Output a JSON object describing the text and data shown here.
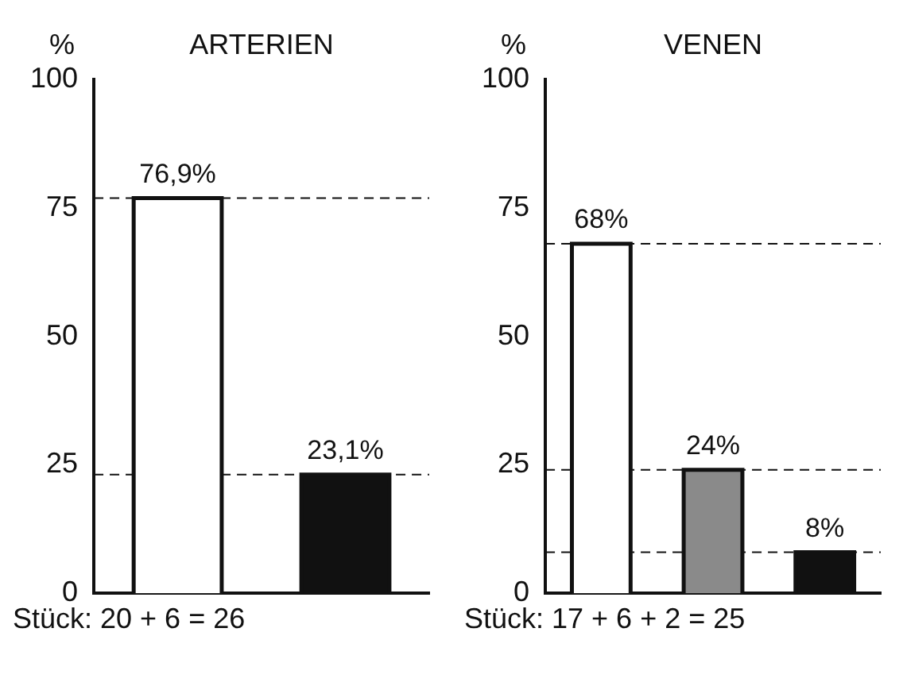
{
  "chart_data": [
    {
      "type": "bar",
      "title": "ARTERIEN",
      "ylabel": "%",
      "xlabel": "Stück: 20 + 6 = 26",
      "categories": [
        null,
        null
      ],
      "values": [
        76.9,
        23.1
      ],
      "colors": [
        "#ffffff",
        "#111111"
      ],
      "value_labels": [
        "76,9%",
        "23,1%"
      ],
      "ylim": [
        0,
        100
      ],
      "yticks": [
        0,
        25,
        50,
        75,
        100
      ],
      "grid": false,
      "legend": false,
      "ref_lines": [
        {
          "axis": "y",
          "value": 76.9,
          "line_style": "dashed"
        },
        {
          "axis": "y",
          "value": 23.1,
          "line_style": "dashed"
        }
      ]
    },
    {
      "type": "bar",
      "title": "VENEN",
      "ylabel": "%",
      "xlabel": "Stück: 17 + 6 + 2 = 25",
      "categories": [
        null,
        null,
        null
      ],
      "values": [
        68,
        24,
        8
      ],
      "colors": [
        "#ffffff",
        "#8a8a8a",
        "#111111"
      ],
      "value_labels": [
        "68%",
        "24%",
        "8%"
      ],
      "ylim": [
        0,
        100
      ],
      "yticks": [
        0,
        25,
        50,
        75,
        100
      ],
      "grid": false,
      "legend": false,
      "ref_lines": [
        {
          "axis": "y",
          "value": 68,
          "line_style": "dashed"
        },
        {
          "axis": "y",
          "value": 24,
          "line_style": "dashed"
        },
        {
          "axis": "y",
          "value": 8,
          "line_style": "dashed"
        }
      ]
    }
  ]
}
